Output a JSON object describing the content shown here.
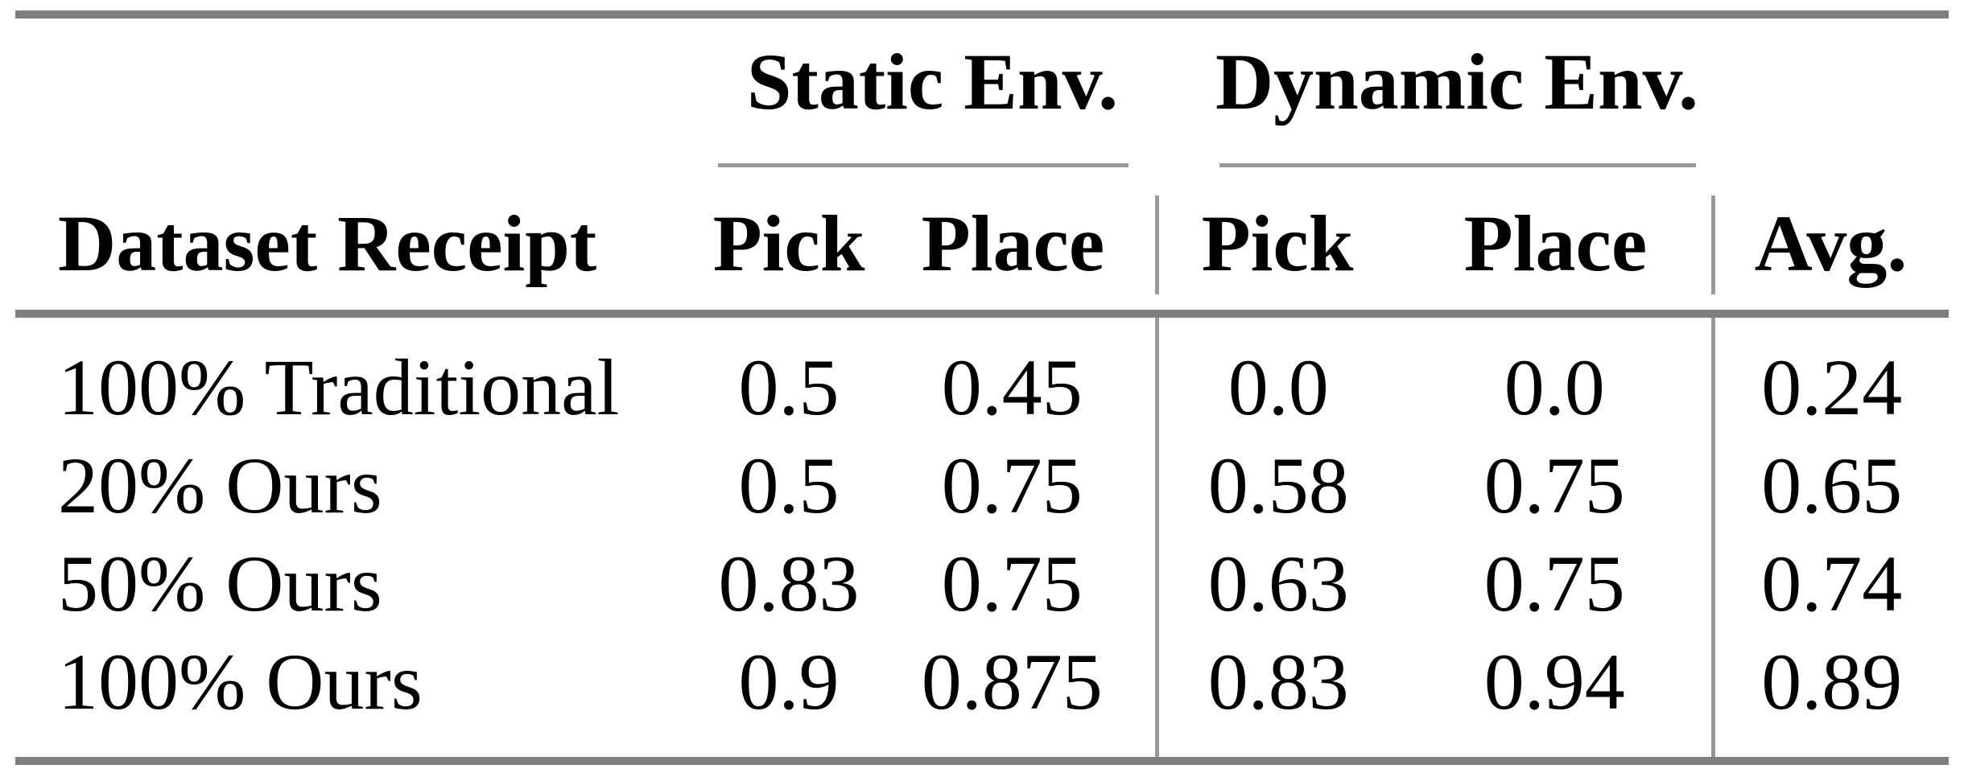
{
  "table": {
    "groups": [
      "Static Env.",
      "Dynamic Env."
    ],
    "headers": [
      "Dataset Receipt",
      "Pick",
      "Place",
      "Pick",
      "Place",
      "Avg."
    ],
    "rows": [
      [
        "100% Traditional",
        "0.5",
        "0.45",
        "0.0",
        "0.0",
        "0.24"
      ],
      [
        "20% Ours",
        "0.5",
        "0.75",
        "0.58",
        "0.75",
        "0.65"
      ],
      [
        "50% Ours",
        "0.83",
        "0.75",
        "0.63",
        "0.75",
        "0.74"
      ],
      [
        "100% Ours",
        "0.9",
        "0.875",
        "0.83",
        "0.94",
        "0.89"
      ]
    ],
    "colors": {
      "rule_thick": "#808080",
      "rule_thin": "#999999",
      "text": "#000000",
      "background": "#ffffff"
    }
  },
  "chart_data": {
    "type": "table",
    "title": "",
    "column_groups": [
      {
        "label": "Static Env.",
        "columns": [
          "Pick",
          "Place"
        ]
      },
      {
        "label": "Dynamic Env.",
        "columns": [
          "Pick",
          "Place"
        ]
      }
    ],
    "columns": [
      "Dataset Receipt",
      "Static Pick",
      "Static Place",
      "Dynamic Pick",
      "Dynamic Place",
      "Avg."
    ],
    "rows": [
      [
        "100% Traditional",
        0.5,
        0.45,
        0.0,
        0.0,
        0.24
      ],
      [
        "20% Ours",
        0.5,
        0.75,
        0.58,
        0.75,
        0.65
      ],
      [
        "50% Ours",
        0.83,
        0.75,
        0.63,
        0.75,
        0.74
      ],
      [
        "100% Ours",
        0.9,
        0.875,
        0.83,
        0.94,
        0.89
      ]
    ]
  }
}
